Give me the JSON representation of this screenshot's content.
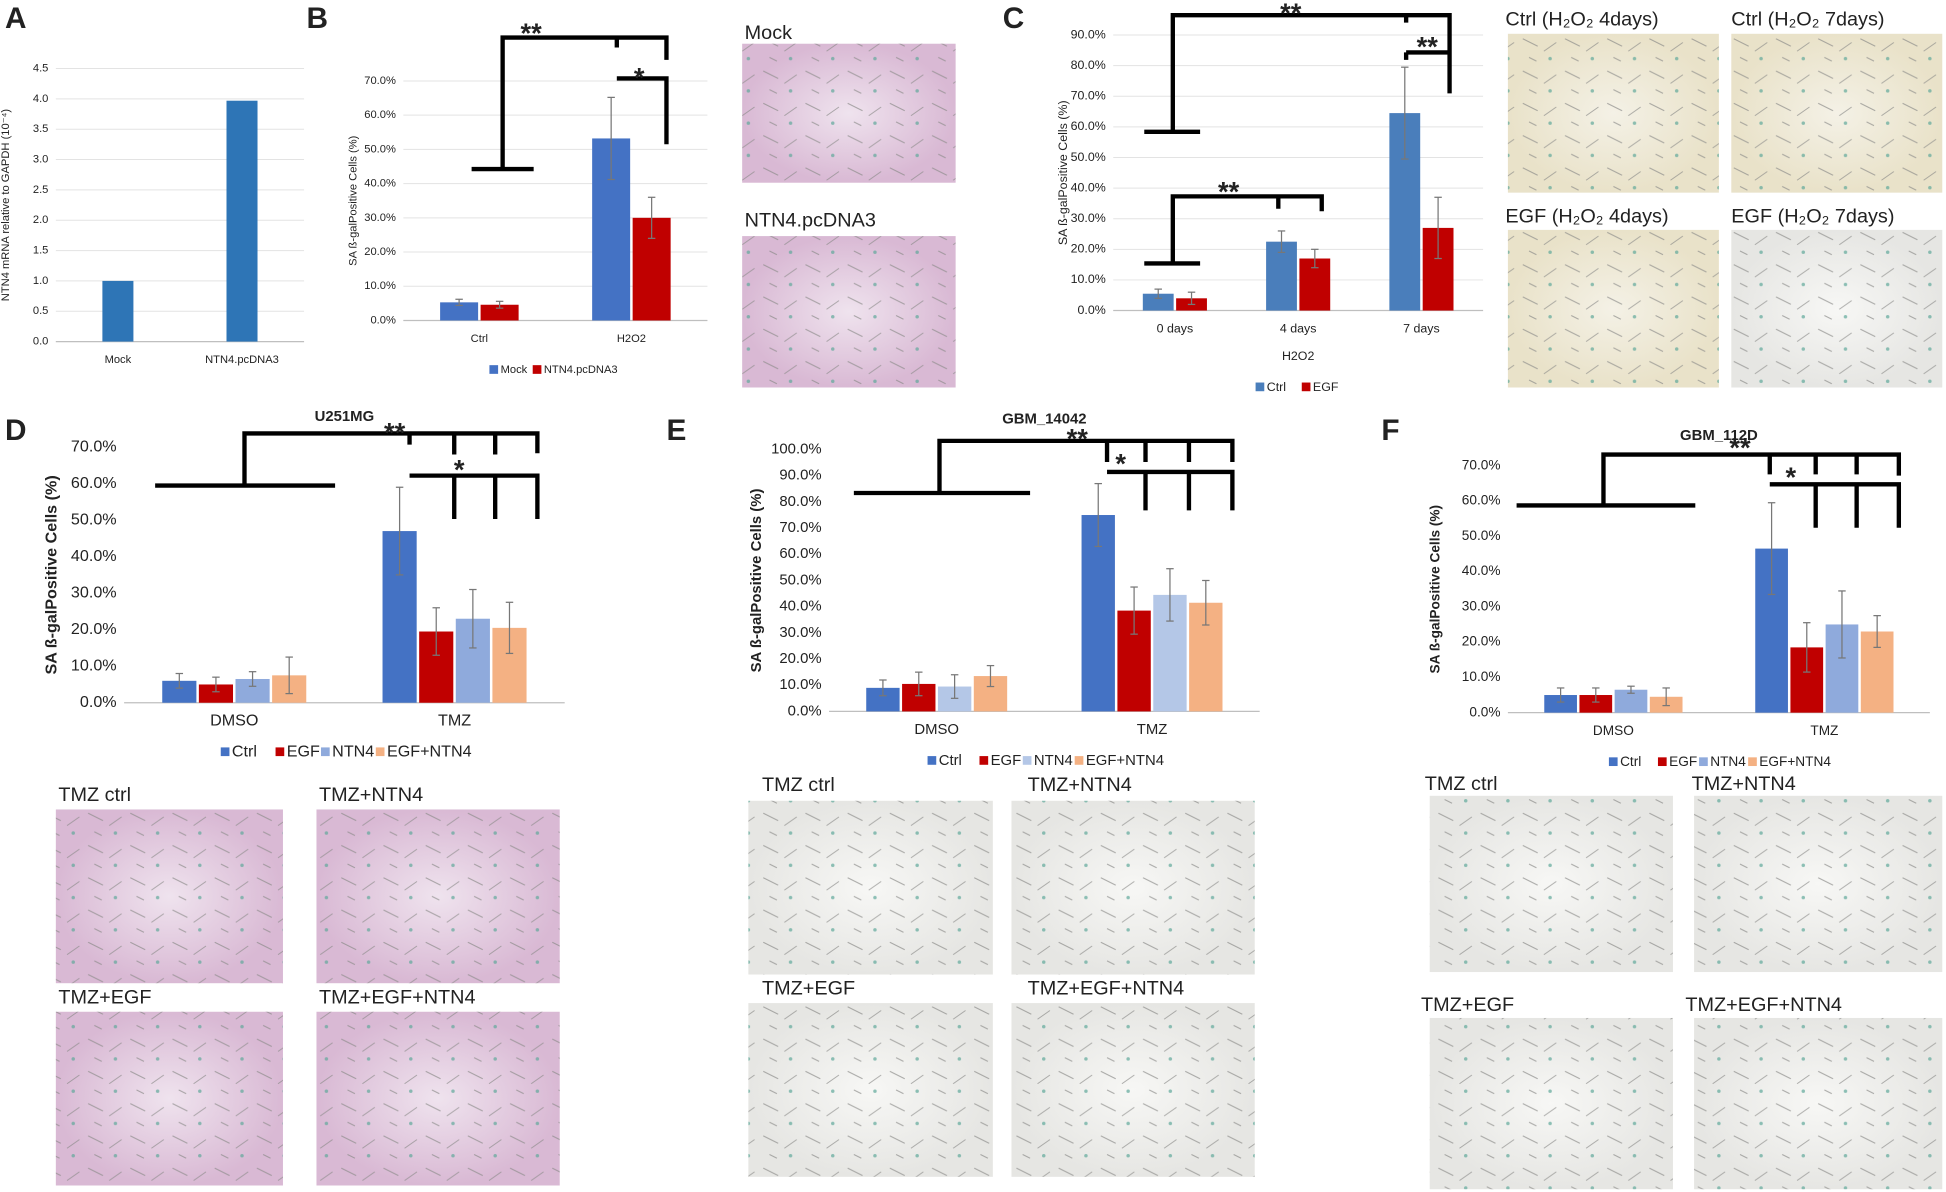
{
  "panel_letters": [
    "A",
    "B",
    "C",
    "D",
    "E",
    "F"
  ],
  "image_labels": [
    "Mock",
    "NTN4.pcDNA3",
    "Ctrl (H₂O₂ 4days)",
    "Ctrl (H₂O₂ 7days)",
    "EGF (H₂O₂ 4days)",
    "EGF (H₂O₂ 7days)",
    "TMZ ctrl",
    "TMZ+NTN4",
    "TMZ+EGF",
    "TMZ+EGF+NTN4",
    "TMZ ctrl",
    "TMZ+NTN4",
    "TMZ+EGF",
    "TMZ+EGF+NTN4",
    "TMZ ctrl",
    "TMZ+NTN4",
    "TMZ+EGF",
    "TMZ+EGF+NTN4"
  ],
  "chart_data": [
    {
      "type": "bar",
      "ylabel": "NTN4 mRNA relative to GAPDH (10⁻⁴)",
      "categories": [
        "Mock",
        "NTN4.pcDNA3"
      ],
      "series": [
        {
          "color": "#2e75b6",
          "values": [
            1.0,
            3.97
          ]
        }
      ],
      "ylim": [
        0,
        4.5
      ],
      "yticks": [
        {
          "value": 0,
          "label": "0.0"
        },
        0.5,
        {
          "value": 1,
          "label": "1.0"
        },
        1.5,
        {
          "value": 2,
          "label": "2.0"
        },
        2.5,
        {
          "value": 3,
          "label": "3.0"
        },
        3.5,
        {
          "value": 4,
          "label": "4.0"
        },
        4.5
      ],
      "grid": true
    },
    {
      "type": "bar",
      "ylabel": "SA ß-galPositive Cells (%)",
      "categories": [
        "Ctrl",
        "H2O2"
      ],
      "series": [
        {
          "name": "Mock",
          "color": "#4472c4",
          "values": [
            5.3,
            53.2
          ],
          "errors": [
            0.9,
            12
          ]
        },
        {
          "name": "NTN4.pcDNA3",
          "color": "#c00000",
          "values": [
            4.6,
            30.0
          ],
          "errors": [
            1.0,
            6
          ]
        }
      ],
      "ylim": [
        0,
        70
      ],
      "yticks": [
        {
          "value": 0,
          "label": "0.0%"
        },
        {
          "value": 10,
          "label": "10.0%"
        },
        {
          "value": 20,
          "label": "20.0%"
        },
        {
          "value": 30,
          "label": "30.0%"
        },
        {
          "value": 40,
          "label": "40.0%"
        },
        {
          "value": 50,
          "label": "50.0%"
        },
        {
          "value": 60,
          "label": "60.0%"
        },
        {
          "value": 70,
          "label": "70.0%"
        }
      ],
      "grid": true,
      "annotations": [
        "**",
        "*"
      ]
    },
    {
      "type": "bar",
      "ylabel": "SA ß-galPositive Cells (%)",
      "xlabel": "H2O2",
      "categories": [
        "0 days",
        "4 days",
        "7 days"
      ],
      "series": [
        {
          "name": "Ctrl",
          "color": "#4a7ebb",
          "values": [
            5.5,
            22.5,
            64.5
          ],
          "errors": [
            1.5,
            3.5,
            15
          ]
        },
        {
          "name": "EGF",
          "color": "#c00000",
          "values": [
            4,
            17,
            27
          ],
          "errors": [
            2,
            3,
            10
          ]
        }
      ],
      "ylim": [
        0,
        90
      ],
      "yticks": [
        {
          "value": 0,
          "label": "0.0%"
        },
        {
          "value": 10,
          "label": "10.0%"
        },
        {
          "value": 20,
          "label": "20.0%"
        },
        {
          "value": 30,
          "label": "30.0%"
        },
        {
          "value": 40,
          "label": "40.0%"
        },
        {
          "value": 50,
          "label": "50.0%"
        },
        {
          "value": 60,
          "label": "60.0%"
        },
        {
          "value": 70,
          "label": "70.0%"
        },
        {
          "value": 80,
          "label": "80.0%"
        },
        {
          "value": 90,
          "label": "90.0%"
        }
      ],
      "grid": true,
      "annotations": [
        "**",
        "**",
        "**"
      ]
    },
    {
      "type": "bar",
      "title": "U251MG",
      "ylabel": "SA ß-galPositive Cells (%)",
      "categories": [
        "DMSO",
        "TMZ"
      ],
      "series": [
        {
          "name": "Ctrl",
          "color": "#4472c4",
          "values": [
            6,
            47
          ],
          "errors": [
            2,
            12
          ]
        },
        {
          "name": "EGF",
          "color": "#c00000",
          "values": [
            5,
            19.5
          ],
          "errors": [
            2,
            6.5
          ]
        },
        {
          "name": "NTN4",
          "color": "#8faadc",
          "values": [
            6.5,
            23
          ],
          "errors": [
            2,
            8
          ]
        },
        {
          "name": "EGF+NTN4",
          "color": "#f4b183",
          "values": [
            7.5,
            20.5
          ],
          "errors": [
            5,
            7
          ]
        }
      ],
      "ylim": [
        0,
        70
      ],
      "yticks": [
        {
          "value": 0,
          "label": "0.0%"
        },
        {
          "value": 10,
          "label": "10.0%"
        },
        {
          "value": 20,
          "label": "20.0%"
        },
        {
          "value": 30,
          "label": "30.0%"
        },
        {
          "value": 40,
          "label": "40.0%"
        },
        {
          "value": 50,
          "label": "50.0%"
        },
        {
          "value": 60,
          "label": "60.0%"
        },
        {
          "value": 70,
          "label": "70.0%"
        }
      ],
      "grid": false,
      "annotations": [
        "**",
        "*"
      ]
    },
    {
      "type": "bar",
      "title": "GBM_14042",
      "ylabel": "SA ß-galPositive Cells (%)",
      "categories": [
        "DMSO",
        "TMZ"
      ],
      "series": [
        {
          "name": "Ctrl",
          "color": "#4472c4",
          "values": [
            9,
            75
          ],
          "errors": [
            3,
            12
          ]
        },
        {
          "name": "EGF",
          "color": "#c00000",
          "values": [
            10.5,
            38.5
          ],
          "errors": [
            4.5,
            9
          ]
        },
        {
          "name": "NTN4",
          "color": "#b4c7e7",
          "values": [
            9.5,
            44.5
          ],
          "errors": [
            4.5,
            10
          ]
        },
        {
          "name": "EGF+NTN4",
          "color": "#f4b183",
          "values": [
            13.5,
            41.5
          ],
          "errors": [
            4,
            8.5
          ]
        }
      ],
      "ylim": [
        0,
        100
      ],
      "yticks": [
        {
          "value": 0,
          "label": "0.0%"
        },
        {
          "value": 10,
          "label": "10.0%"
        },
        {
          "value": 20,
          "label": "20.0%"
        },
        {
          "value": 30,
          "label": "30.0%"
        },
        {
          "value": 40,
          "label": "40.0%"
        },
        {
          "value": 50,
          "label": "50.0%"
        },
        {
          "value": 60,
          "label": "60.0%"
        },
        {
          "value": 70,
          "label": "70.0%"
        },
        {
          "value": 80,
          "label": "80.0%"
        },
        {
          "value": 90,
          "label": "90.0%"
        },
        {
          "value": 100,
          "label": "100.0%"
        }
      ],
      "grid": false,
      "annotations": [
        "**",
        "*"
      ]
    },
    {
      "type": "bar",
      "title": "GBM_112D",
      "ylabel": "SA ß-galPositive Cells (%)",
      "categories": [
        "DMSO",
        "TMZ"
      ],
      "series": [
        {
          "name": "Ctrl",
          "color": "#4472c4",
          "values": [
            5,
            46.5
          ],
          "errors": [
            2,
            13
          ]
        },
        {
          "name": "EGF",
          "color": "#c00000",
          "values": [
            5,
            18.5
          ],
          "errors": [
            2,
            7
          ]
        },
        {
          "name": "NTN4",
          "color": "#8faadc",
          "values": [
            6.5,
            25
          ],
          "errors": [
            1,
            9.5
          ]
        },
        {
          "name": "EGF+NTN4",
          "color": "#f4b183",
          "values": [
            4.5,
            23
          ],
          "errors": [
            2.5,
            4.5
          ]
        }
      ],
      "ylim": [
        0,
        70
      ],
      "yticks": [
        {
          "value": 0,
          "label": "0.0%"
        },
        {
          "value": 10,
          "label": "10.0%"
        },
        {
          "value": 20,
          "label": "20.0%"
        },
        {
          "value": 30,
          "label": "30.0%"
        },
        {
          "value": 40,
          "label": "40.0%"
        },
        {
          "value": 50,
          "label": "50.0%"
        },
        {
          "value": 60,
          "label": "60.0%"
        },
        {
          "value": 70,
          "label": "70.0%"
        }
      ],
      "grid": false,
      "annotations": [
        "**",
        "*"
      ]
    }
  ]
}
